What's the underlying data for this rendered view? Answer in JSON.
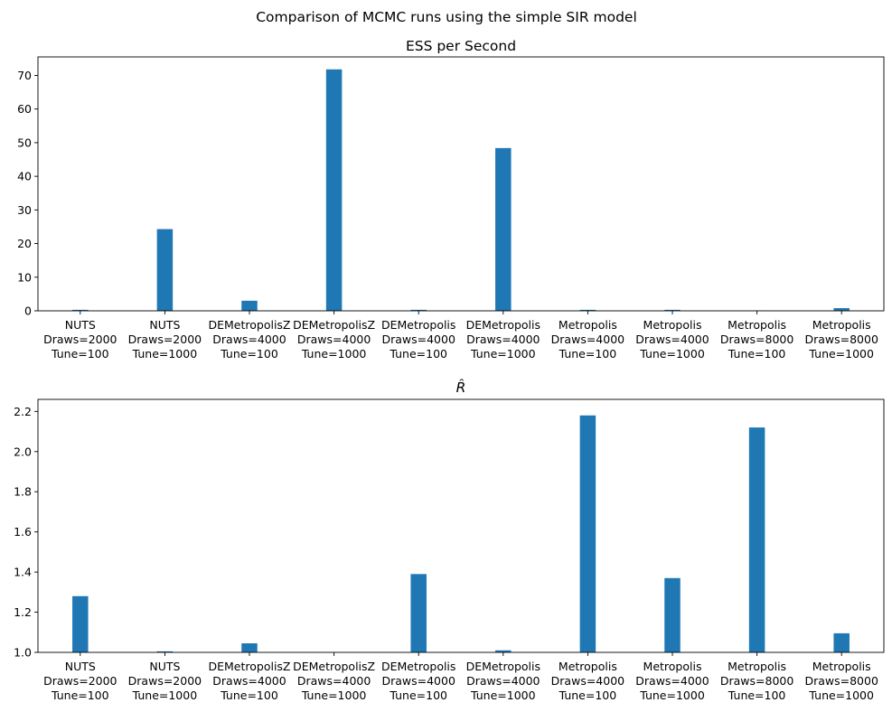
{
  "figure": {
    "suptitle": "Comparison of MCMC runs using the simple SIR model",
    "bar_color": "#1f77b4"
  },
  "chart_data": [
    {
      "type": "bar",
      "title": "ESS per Second",
      "xlabel": "",
      "ylabel": "",
      "categories": [
        [
          "NUTS",
          "Draws=2000",
          "Tune=100"
        ],
        [
          "NUTS",
          "Draws=2000",
          "Tune=1000"
        ],
        [
          "DEMetropolisZ",
          "Draws=4000",
          "Tune=100"
        ],
        [
          "DEMetropolisZ",
          "Draws=4000",
          "Tune=1000"
        ],
        [
          "DEMetropolis",
          "Draws=4000",
          "Tune=100"
        ],
        [
          "DEMetropolis",
          "Draws=4000",
          "Tune=1000"
        ],
        [
          "Metropolis",
          "Draws=4000",
          "Tune=100"
        ],
        [
          "Metropolis",
          "Draws=4000",
          "Tune=1000"
        ],
        [
          "Metropolis",
          "Draws=8000",
          "Tune=100"
        ],
        [
          "Metropolis",
          "Draws=8000",
          "Tune=1000"
        ]
      ],
      "values": [
        0.3,
        24.3,
        3.0,
        71.8,
        0.3,
        48.4,
        0.3,
        0.3,
        0.1,
        0.8
      ],
      "ylim": [
        0,
        75.5
      ],
      "yticks": [
        0,
        10,
        20,
        30,
        40,
        50,
        60,
        70
      ],
      "ytick_labels": [
        "0",
        "10",
        "20",
        "30",
        "40",
        "50",
        "60",
        "70"
      ],
      "grid": false,
      "legend": "none"
    },
    {
      "type": "bar",
      "title": "R̂",
      "xlabel": "",
      "ylabel": "",
      "categories": [
        [
          "NUTS",
          "Draws=2000",
          "Tune=100"
        ],
        [
          "NUTS",
          "Draws=2000",
          "Tune=1000"
        ],
        [
          "DEMetropolisZ",
          "Draws=4000",
          "Tune=100"
        ],
        [
          "DEMetropolisZ",
          "Draws=4000",
          "Tune=1000"
        ],
        [
          "DEMetropolis",
          "Draws=4000",
          "Tune=100"
        ],
        [
          "DEMetropolis",
          "Draws=4000",
          "Tune=1000"
        ],
        [
          "Metropolis",
          "Draws=4000",
          "Tune=100"
        ],
        [
          "Metropolis",
          "Draws=4000",
          "Tune=1000"
        ],
        [
          "Metropolis",
          "Draws=8000",
          "Tune=100"
        ],
        [
          "Metropolis",
          "Draws=8000",
          "Tune=1000"
        ]
      ],
      "values": [
        1.28,
        1.005,
        1.045,
        1.0,
        1.39,
        1.01,
        2.18,
        1.37,
        2.12,
        1.095
      ],
      "ylim": [
        1.0,
        2.26
      ],
      "yticks": [
        1.0,
        1.2,
        1.4,
        1.6,
        1.8,
        2.0,
        2.2
      ],
      "ytick_labels": [
        "1.0",
        "1.2",
        "1.4",
        "1.6",
        "1.8",
        "2.0",
        "2.2"
      ],
      "grid": false,
      "legend": "none"
    }
  ]
}
